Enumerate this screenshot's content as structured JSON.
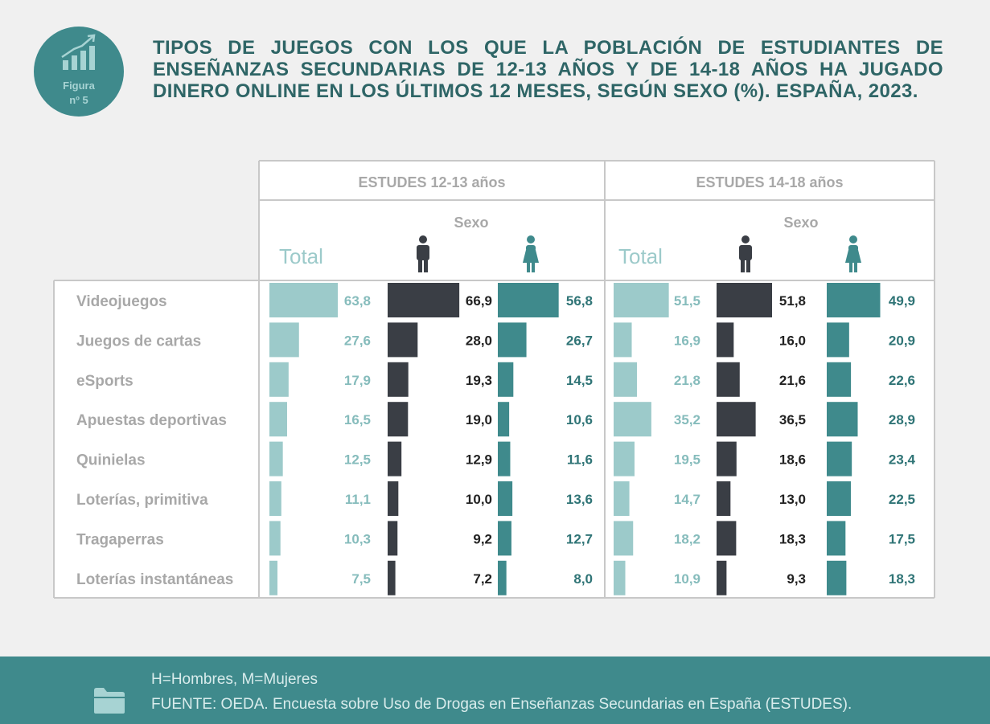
{
  "badge": {
    "line1": "Figura",
    "line2": "nº 5"
  },
  "title": "TIPOS DE JUEGOS CON LOS QUE LA POBLACIÓN DE ESTUDIANTES DE ENSEÑANZAS SECUNDARIAS DE 12-13 AÑOS Y DE 14-18 AÑOS HA JUGADO DINERO ONLINE EN LOS ÚLTIMOS 12 MESES, SEGÚN SEXO (%). ESPAÑA, 2023.",
  "footer": {
    "note": "H=Hombres, M=Mujeres",
    "source": "FUENTE: OEDA. Encuesta sobre Uso de Drogas en Enseñanzas Secundarias en España (ESTUDES)."
  },
  "colors": {
    "total": "#9ccaca",
    "total_text": "#86bcbc",
    "male": "#3a3e45",
    "male_text": "#222222",
    "female": "#3f8a8c",
    "female_text": "#2f7476",
    "category_text": "#a8a8a8",
    "header_text": "#a8a8a8"
  },
  "chart_data": {
    "type": "bar",
    "orientation": "horizontal",
    "categories": [
      "Videojuegos",
      "Juegos de cartas",
      "eSports",
      "Apuestas deportivas",
      "Quinielas",
      "Loterías, primitiva",
      "Tragaperras",
      "Loterías instantáneas"
    ],
    "subheader": "Sexo",
    "groups": [
      {
        "name": "ESTUDES 12-13 años",
        "series": [
          {
            "name": "Total",
            "icon": "none",
            "values": [
              "63,8",
              "27,6",
              "17,9",
              "16,5",
              "12,5",
              "11,1",
              "10,3",
              "7,5"
            ]
          },
          {
            "name": "",
            "icon": "male-icon",
            "values": [
              "66,9",
              "28,0",
              "19,3",
              "19,0",
              "12,9",
              "10,0",
              "9,2",
              "7,2"
            ]
          },
          {
            "name": "",
            "icon": "female-icon",
            "values": [
              "56,8",
              "26,7",
              "14,5",
              "10,6",
              "11,6",
              "13,6",
              "12,7",
              "8,0"
            ]
          }
        ]
      },
      {
        "name": "ESTUDES 14-18 años",
        "series": [
          {
            "name": "Total",
            "icon": "none",
            "values": [
              "51,5",
              "16,9",
              "21,8",
              "35,2",
              "19,5",
              "14,7",
              "18,2",
              "10,9"
            ]
          },
          {
            "name": "",
            "icon": "male-icon",
            "values": [
              "51,8",
              "16,0",
              "21,6",
              "36,5",
              "18,6",
              "13,0",
              "18,3",
              "9,3"
            ]
          },
          {
            "name": "",
            "icon": "female-icon",
            "values": [
              "49,9",
              "20,9",
              "22,6",
              "28,9",
              "23,4",
              "22,5",
              "17,5",
              "18,3"
            ]
          }
        ]
      }
    ],
    "xlim": [
      0,
      75
    ]
  }
}
